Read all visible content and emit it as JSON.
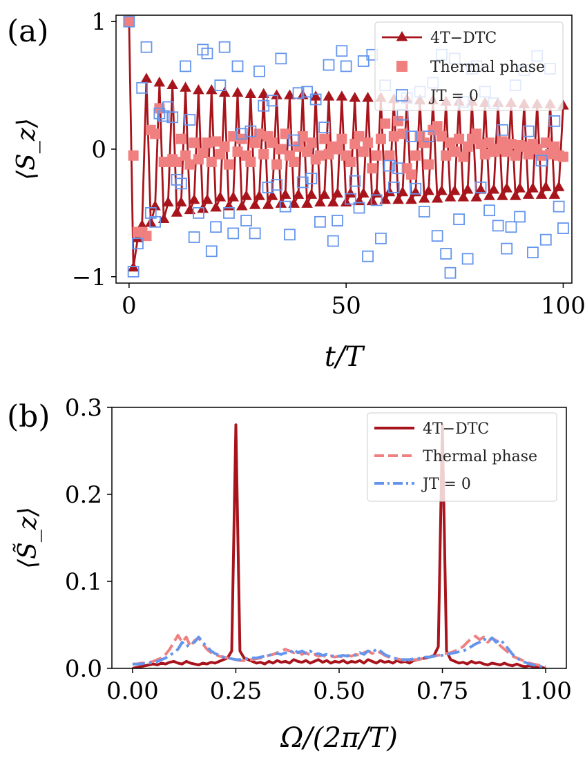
{
  "colors": {
    "dtc": "#a8141c",
    "thermal": "#f08080",
    "jt0": "#6495ed"
  },
  "chart_data": [
    {
      "panel": "(a)",
      "type": "line",
      "xlabel": "t/T",
      "ylabel": "⟨S_z⟩",
      "xlim": [
        -3,
        102
      ],
      "ylim": [
        -1.05,
        1.05
      ],
      "xticks": [
        0,
        50,
        100
      ],
      "yticks": [
        -1,
        0,
        1
      ],
      "xtick_labels": [
        "0",
        "50",
        "100"
      ],
      "ytick_labels": [
        "−1",
        "0",
        "1"
      ],
      "grid": false,
      "legend_position": "top-right",
      "legend": [
        "4T−DTC",
        "Thermal phase",
        "JT = 0"
      ],
      "x": [
        0,
        1,
        2,
        3,
        4,
        5,
        6,
        7,
        8,
        9,
        10,
        11,
        12,
        13,
        14,
        15,
        16,
        17,
        18,
        19,
        20,
        21,
        22,
        23,
        24,
        25,
        26,
        27,
        28,
        29,
        30,
        31,
        32,
        33,
        34,
        35,
        36,
        37,
        38,
        39,
        40,
        41,
        42,
        43,
        44,
        45,
        46,
        47,
        48,
        49,
        50,
        51,
        52,
        53,
        54,
        55,
        56,
        57,
        58,
        59,
        60,
        61,
        62,
        63,
        64,
        65,
        66,
        67,
        68,
        69,
        70,
        71,
        72,
        73,
        74,
        75,
        76,
        77,
        78,
        79,
        80,
        81,
        82,
        83,
        84,
        85,
        86,
        87,
        88,
        89,
        90,
        91,
        92,
        93,
        94,
        95,
        96,
        97,
        98,
        99,
        100
      ],
      "series": [
        {
          "name": "4T−DTC",
          "marker": "triangle",
          "values": [
            1.0,
            -0.93,
            -0.7,
            -0.6,
            0.55,
            -0.58,
            -0.45,
            0.52,
            -0.55,
            -0.42,
            0.5,
            -0.5,
            -0.42,
            0.48,
            -0.48,
            -0.4,
            0.46,
            -0.47,
            -0.4,
            0.46,
            -0.46,
            -0.38,
            0.44,
            -0.45,
            -0.38,
            0.44,
            -0.45,
            -0.37,
            0.43,
            -0.44,
            -0.37,
            0.43,
            -0.44,
            -0.37,
            0.42,
            -0.43,
            -0.36,
            0.42,
            -0.43,
            -0.36,
            0.42,
            -0.43,
            -0.36,
            0.41,
            -0.42,
            -0.36,
            0.41,
            -0.42,
            -0.35,
            0.41,
            -0.42,
            -0.35,
            0.4,
            -0.41,
            -0.35,
            0.4,
            -0.41,
            -0.35,
            0.4,
            -0.4,
            -0.34,
            0.39,
            -0.4,
            -0.34,
            0.39,
            -0.4,
            -0.34,
            0.38,
            -0.39,
            -0.33,
            0.38,
            -0.39,
            -0.33,
            0.37,
            -0.38,
            -0.33,
            0.37,
            -0.38,
            -0.32,
            0.37,
            -0.38,
            -0.32,
            0.36,
            -0.37,
            -0.32,
            0.36,
            -0.37,
            -0.31,
            0.36,
            -0.37,
            -0.31,
            0.35,
            -0.36,
            -0.31,
            0.35,
            -0.36,
            -0.3,
            0.35,
            -0.36,
            -0.3,
            0.34
          ]
        },
        {
          "name": "Thermal phase",
          "marker": "filled-square",
          "values": [
            1.0,
            -0.05,
            -0.65,
            -0.65,
            -0.68,
            0.15,
            0.12,
            0.32,
            -0.1,
            -0.1,
            -0.08,
            -0.1,
            0.08,
            -0.05,
            -0.12,
            0.05,
            -0.08,
            -0.03,
            0.05,
            -0.1,
            0.06,
            -0.04,
            0.02,
            -0.12,
            0.1,
            -0.02,
            0.08,
            -0.05,
            -0.1,
            0.05,
            0.12,
            -0.04,
            0.1,
            0.05,
            -0.12,
            0.0,
            0.12,
            -0.05,
            -0.1,
            0.02,
            0.1,
            -0.02,
            0.05,
            -0.08,
            -0.05,
            0.08,
            -0.04,
            0.02,
            0.0,
            0.08,
            -0.05,
            -0.1,
            0.04,
            0.1,
            -0.02,
            0.05,
            -0.15,
            -0.05,
            0.08,
            0.2,
            -0.05,
            0.1,
            0.22,
            0.12,
            -0.15,
            -0.2,
            -0.05,
            0.1,
            0.05,
            -0.12,
            0.15,
            0.18,
            0.1,
            -0.05,
            0.05,
            -0.02,
            0.08,
            -0.06,
            0.02,
            0.08,
            0.12,
            0.04,
            -0.04,
            0.05,
            -0.02,
            0.0,
            0.06,
            -0.02,
            0.04,
            -0.05,
            0.03,
            0.02,
            -0.04,
            0.04,
            0.0,
            -0.05,
            0.05,
            -0.04,
            0.02,
            -0.05,
            -0.06
          ]
        },
        {
          "name": "JT = 0",
          "marker": "open-square",
          "values": [
            1.0,
            -0.96,
            -0.74,
            0.48,
            0.8,
            -0.5,
            -0.57,
            0.28,
            0.26,
            0.33,
            0.25,
            -0.24,
            -0.27,
            0.65,
            0.23,
            -0.69,
            -0.5,
            0.78,
            0.75,
            -0.8,
            -0.61,
            0.5,
            0.8,
            -0.5,
            -0.66,
            0.65,
            0.12,
            -0.56,
            0.14,
            -0.66,
            0.61,
            0.34,
            -0.3,
            0.38,
            -0.28,
            0.71,
            -0.45,
            -0.67,
            0.07,
            0.44,
            -0.26,
            0.45,
            -0.23,
            0.39,
            -0.57,
            0.17,
            0.66,
            -0.72,
            -0.56,
            0.77,
            0.65,
            -0.39,
            -0.25,
            -0.46,
            0.69,
            -0.84,
            0.74,
            -0.4,
            -0.7,
            0.5,
            -0.13,
            -0.3,
            -0.15,
            0.27,
            0.4,
            0.1,
            -0.31,
            0.45,
            -0.49,
            0.1,
            0.52,
            -0.68,
            0.74,
            -0.82,
            -0.97,
            0.71,
            -0.55,
            0.37,
            -0.86,
            0.63,
            0.65,
            -0.3,
            0.45,
            -0.48,
            0.36,
            -0.6,
            0.15,
            -0.78,
            -0.61,
            0.5,
            -0.53,
            0.62,
            0.14,
            -0.81,
            0.73,
            -0.09,
            -0.71,
            0.63,
            0.22,
            -0.45,
            -0.62
          ]
        }
      ]
    },
    {
      "panel": "(b)",
      "type": "line",
      "xlabel": "Ω/(2π/T)",
      "ylabel": "⟨S̃_z⟩",
      "xlim": [
        -0.05,
        1.05
      ],
      "ylim": [
        0,
        0.3
      ],
      "xticks": [
        0.0,
        0.25,
        0.5,
        0.75,
        1.0
      ],
      "yticks": [
        0.0,
        0.1,
        0.2,
        0.3
      ],
      "xtick_labels": [
        "0.00",
        "0.25",
        "0.50",
        "0.75",
        "1.00"
      ],
      "ytick_labels": [
        "0.0",
        "0.1",
        "0.2",
        "0.3"
      ],
      "grid": false,
      "legend_position": "top-right",
      "legend": [
        "4T−DTC",
        "Thermal phase",
        "JT = 0"
      ],
      "x": [
        0.0,
        0.01,
        0.02,
        0.03,
        0.04,
        0.05,
        0.06,
        0.07,
        0.08,
        0.09,
        0.1,
        0.11,
        0.12,
        0.13,
        0.14,
        0.15,
        0.16,
        0.17,
        0.18,
        0.19,
        0.2,
        0.21,
        0.22,
        0.23,
        0.24,
        0.25,
        0.26,
        0.27,
        0.28,
        0.29,
        0.3,
        0.31,
        0.32,
        0.33,
        0.34,
        0.35,
        0.36,
        0.37,
        0.38,
        0.39,
        0.4,
        0.41,
        0.42,
        0.43,
        0.44,
        0.45,
        0.46,
        0.47,
        0.48,
        0.49,
        0.5,
        0.51,
        0.52,
        0.53,
        0.54,
        0.55,
        0.56,
        0.57,
        0.58,
        0.59,
        0.6,
        0.61,
        0.62,
        0.63,
        0.64,
        0.65,
        0.66,
        0.67,
        0.68,
        0.69,
        0.7,
        0.71,
        0.72,
        0.73,
        0.74,
        0.75,
        0.76,
        0.77,
        0.78,
        0.79,
        0.8,
        0.81,
        0.82,
        0.83,
        0.84,
        0.85,
        0.86,
        0.87,
        0.88,
        0.89,
        0.9,
        0.91,
        0.92,
        0.93,
        0.94,
        0.95,
        0.96,
        0.97,
        0.98,
        0.99,
        1.0
      ],
      "series": [
        {
          "name": "4T−DTC",
          "style": "solid",
          "values": [
            0.0,
            0.001,
            0.002,
            0.003,
            0.004,
            0.005,
            0.004,
            0.006,
            0.005,
            0.007,
            0.008,
            0.006,
            0.005,
            0.008,
            0.006,
            0.005,
            0.004,
            0.006,
            0.005,
            0.007,
            0.006,
            0.008,
            0.01,
            0.012,
            0.02,
            0.28,
            0.02,
            0.012,
            0.01,
            0.008,
            0.006,
            0.007,
            0.005,
            0.008,
            0.006,
            0.009,
            0.007,
            0.008,
            0.006,
            0.01,
            0.008,
            0.007,
            0.009,
            0.006,
            0.008,
            0.01,
            0.007,
            0.009,
            0.006,
            0.008,
            0.007,
            0.009,
            0.006,
            0.008,
            0.007,
            0.009,
            0.006,
            0.01,
            0.008,
            0.006,
            0.009,
            0.007,
            0.008,
            0.006,
            0.009,
            0.007,
            0.008,
            0.006,
            0.009,
            0.01,
            0.011,
            0.012,
            0.013,
            0.015,
            0.025,
            0.28,
            0.02,
            0.01,
            0.008,
            0.006,
            0.007,
            0.005,
            0.008,
            0.006,
            0.007,
            0.005,
            0.004,
            0.006,
            0.005,
            0.004,
            0.006,
            0.004,
            0.003,
            0.005,
            0.003,
            0.002,
            0.003,
            0.002,
            0.001,
            0.001,
            0.0
          ]
        },
        {
          "name": "Thermal phase",
          "style": "dashed",
          "values": [
            0.005,
            0.005,
            0.006,
            0.006,
            0.007,
            0.008,
            0.01,
            0.012,
            0.016,
            0.022,
            0.03,
            0.038,
            0.03,
            0.036,
            0.025,
            0.032,
            0.035,
            0.028,
            0.022,
            0.018,
            0.016,
            0.014,
            0.013,
            0.012,
            0.011,
            0.01,
            0.009,
            0.009,
            0.01,
            0.01,
            0.011,
            0.012,
            0.013,
            0.015,
            0.016,
            0.018,
            0.02,
            0.022,
            0.02,
            0.018,
            0.02,
            0.016,
            0.018,
            0.015,
            0.016,
            0.014,
            0.015,
            0.013,
            0.014,
            0.013,
            0.014,
            0.013,
            0.015,
            0.014,
            0.016,
            0.015,
            0.018,
            0.02,
            0.017,
            0.02,
            0.018,
            0.015,
            0.013,
            0.012,
            0.011,
            0.01,
            0.009,
            0.009,
            0.01,
            0.01,
            0.011,
            0.012,
            0.013,
            0.014,
            0.015,
            0.016,
            0.017,
            0.018,
            0.02,
            0.022,
            0.025,
            0.03,
            0.034,
            0.037,
            0.033,
            0.036,
            0.03,
            0.035,
            0.032,
            0.026,
            0.022,
            0.018,
            0.014,
            0.012,
            0.01,
            0.008,
            0.006,
            0.005,
            0.004,
            0.003,
            0.002
          ]
        },
        {
          "name": "JT = 0",
          "style": "dashdot",
          "values": [
            0.005,
            0.005,
            0.005,
            0.006,
            0.006,
            0.007,
            0.008,
            0.01,
            0.012,
            0.015,
            0.018,
            0.022,
            0.03,
            0.025,
            0.028,
            0.03,
            0.036,
            0.03,
            0.025,
            0.02,
            0.017,
            0.015,
            0.013,
            0.012,
            0.011,
            0.01,
            0.01,
            0.011,
            0.011,
            0.012,
            0.012,
            0.013,
            0.014,
            0.015,
            0.016,
            0.017,
            0.016,
            0.018,
            0.017,
            0.022,
            0.018,
            0.02,
            0.017,
            0.02,
            0.016,
            0.017,
            0.015,
            0.016,
            0.014,
            0.015,
            0.014,
            0.015,
            0.014,
            0.016,
            0.015,
            0.018,
            0.016,
            0.02,
            0.018,
            0.022,
            0.02,
            0.016,
            0.014,
            0.012,
            0.011,
            0.01,
            0.01,
            0.01,
            0.011,
            0.011,
            0.012,
            0.013,
            0.013,
            0.014,
            0.015,
            0.015,
            0.016,
            0.017,
            0.018,
            0.019,
            0.02,
            0.022,
            0.025,
            0.028,
            0.03,
            0.034,
            0.031,
            0.035,
            0.03,
            0.033,
            0.028,
            0.022,
            0.016,
            0.012,
            0.009,
            0.007,
            0.005,
            0.004,
            0.003,
            0.002,
            0.001
          ]
        }
      ]
    }
  ]
}
